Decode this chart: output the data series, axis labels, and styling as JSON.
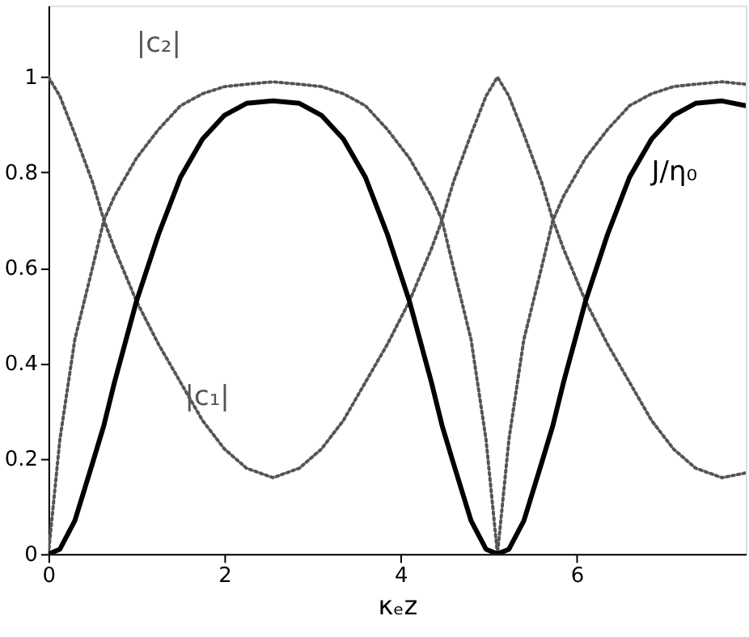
{
  "chart_data": {
    "type": "line",
    "xlabel": "κₑz",
    "x": [
      0,
      0.13,
      0.3,
      0.5,
      0.63,
      0.75,
      1,
      1.25,
      1.5,
      1.75,
      2,
      2.25,
      2.55,
      2.85,
      3.1,
      3.35,
      3.6,
      3.85,
      4.1,
      4.35,
      4.47,
      4.6,
      4.8,
      4.97,
      5.1,
      5.23,
      5.4,
      5.6,
      5.73,
      5.85,
      6.1,
      6.35,
      6.6,
      6.85,
      7.1,
      7.35,
      7.65,
      7.92
    ],
    "series": [
      {
        "name": "|c₂|",
        "color": "#555555",
        "line_style": "dotted",
        "values": [
          0,
          0.24,
          0.45,
          0.6,
          0.7,
          0.75,
          0.83,
          0.89,
          0.94,
          0.965,
          0.98,
          0.985,
          0.99,
          0.985,
          0.98,
          0.965,
          0.94,
          0.89,
          0.83,
          0.75,
          0.7,
          0.6,
          0.45,
          0.24,
          0,
          0.24,
          0.45,
          0.6,
          0.7,
          0.75,
          0.83,
          0.89,
          0.94,
          0.965,
          0.98,
          0.985,
          0.99,
          0.985
        ]
      },
      {
        "name": "|c₁|",
        "color": "#555555",
        "line_style": "dotted",
        "values": [
          1,
          0.96,
          0.88,
          0.78,
          0.7,
          0.64,
          0.53,
          0.44,
          0.36,
          0.28,
          0.22,
          0.18,
          0.16,
          0.18,
          0.22,
          0.28,
          0.36,
          0.44,
          0.53,
          0.64,
          0.7,
          0.78,
          0.88,
          0.96,
          1,
          0.96,
          0.88,
          0.78,
          0.7,
          0.64,
          0.53,
          0.44,
          0.36,
          0.28,
          0.22,
          0.18,
          0.16,
          0.17
        ]
      },
      {
        "name": "J/η₀",
        "color": "#000000",
        "line_style": "solid",
        "values": [
          0,
          0.01,
          0.07,
          0.19,
          0.27,
          0.36,
          0.53,
          0.67,
          0.79,
          0.87,
          0.92,
          0.945,
          0.95,
          0.945,
          0.92,
          0.87,
          0.79,
          0.67,
          0.53,
          0.36,
          0.27,
          0.19,
          0.07,
          0.01,
          0,
          0.01,
          0.07,
          0.19,
          0.27,
          0.36,
          0.53,
          0.67,
          0.79,
          0.87,
          0.92,
          0.945,
          0.95,
          0.94
        ]
      }
    ],
    "xlim": [
      0,
      7.92
    ],
    "ylim": [
      0,
      1.15
    ],
    "xticks": [
      0,
      2,
      4,
      6
    ],
    "yticks": [
      0,
      0.2,
      0.4,
      0.6,
      0.8,
      1
    ],
    "grid": false,
    "legend": false,
    "marker": "none"
  }
}
